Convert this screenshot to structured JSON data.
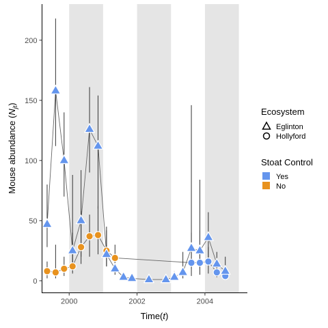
{
  "chart_data": {
    "type": "scatter",
    "xlabel": "Time(",
    "xlabel_var": "t",
    "xlabel_close": ")",
    "ylabel": "Mouse abundance (",
    "ylabel_var": "N",
    "ylabel_sub": "jt",
    "ylabel_close": ")",
    "xlim": [
      1999.2,
      2005.25
    ],
    "ylim": [
      -10,
      230
    ],
    "x_ticks": [
      2000,
      2002,
      2004
    ],
    "y_ticks": [
      0,
      50,
      100,
      150,
      200
    ],
    "x_tick_labels": [
      "2000",
      "2002",
      "2004"
    ],
    "y_tick_labels": [
      "0",
      "50",
      "100",
      "150",
      "200"
    ],
    "grid": false,
    "shaded_periods": [
      [
        2000,
        2001
      ],
      [
        2002,
        2003
      ],
      [
        2004,
        2005
      ]
    ],
    "colors": {
      "yes": "#6495ED",
      "no": "#E8921E",
      "shade": "#E5E5E5",
      "line": "#666666",
      "errorbar": "#333333"
    },
    "legend": {
      "position": "right",
      "ecosystem_title": "Ecosystem",
      "ecosystem_items": [
        {
          "label": "Eglinton",
          "shape": "triangle"
        },
        {
          "label": "Hollyford",
          "shape": "circle"
        }
      ],
      "control_title": "Stoat Control",
      "control_items": [
        {
          "label": "Yes",
          "color": "#6495ED"
        },
        {
          "label": "No",
          "color": "#E8921E"
        }
      ]
    },
    "series": [
      {
        "ecosystem": "Eglinton",
        "shape": "triangle",
        "points": [
          {
            "x": 1999.35,
            "y": 47,
            "lo": 28,
            "hi": 80,
            "control": "Yes"
          },
          {
            "x": 1999.6,
            "y": 158,
            "lo": 112,
            "hi": 218,
            "control": "Yes"
          },
          {
            "x": 1999.85,
            "y": 100,
            "lo": 70,
            "hi": 140,
            "control": "Yes"
          },
          {
            "x": 2000.1,
            "y": 25,
            "lo": 8,
            "hi": 88,
            "control": "Yes"
          },
          {
            "x": 2000.35,
            "y": 50,
            "lo": 20,
            "hi": 92,
            "control": "Yes"
          },
          {
            "x": 2000.6,
            "y": 126,
            "lo": 90,
            "hi": 161,
            "control": "Yes"
          },
          {
            "x": 2000.85,
            "y": 112,
            "lo": 60,
            "hi": 154,
            "control": "Yes"
          },
          {
            "x": 2001.1,
            "y": 22,
            "lo": 12,
            "hi": 45,
            "control": "Yes"
          },
          {
            "x": 2001.35,
            "y": 10,
            "lo": 5,
            "hi": 20,
            "control": "Yes"
          },
          {
            "x": 2001.6,
            "y": 3,
            "lo": 1,
            "hi": 6,
            "control": "Yes"
          },
          {
            "x": 2001.85,
            "y": 2,
            "lo": 1,
            "hi": 4,
            "control": "Yes"
          },
          {
            "x": 2002.35,
            "y": 1,
            "lo": 0,
            "hi": 3,
            "control": "Yes"
          },
          {
            "x": 2002.85,
            "y": 1,
            "lo": 0,
            "hi": 3,
            "control": "Yes"
          },
          {
            "x": 2003.1,
            "y": 3,
            "lo": 1,
            "hi": 8,
            "control": "Yes"
          },
          {
            "x": 2003.35,
            "y": 7,
            "lo": 2,
            "hi": 24,
            "control": "Yes"
          },
          {
            "x": 2003.6,
            "y": 27,
            "lo": 10,
            "hi": 146,
            "control": "Yes"
          },
          {
            "x": 2003.85,
            "y": 25,
            "lo": 10,
            "hi": 84,
            "control": "Yes"
          },
          {
            "x": 2004.1,
            "y": 36,
            "lo": 18,
            "hi": 57,
            "control": "Yes"
          },
          {
            "x": 2004.35,
            "y": 14,
            "lo": 5,
            "hi": 24,
            "control": "Yes"
          },
          {
            "x": 2004.6,
            "y": 8,
            "lo": 2,
            "hi": 20,
            "control": "Yes"
          }
        ]
      },
      {
        "ecosystem": "Hollyford",
        "shape": "circle",
        "points": [
          {
            "x": 1999.35,
            "y": 8,
            "lo": 2,
            "hi": 16,
            "control": "No"
          },
          {
            "x": 1999.6,
            "y": 7,
            "lo": 2,
            "hi": 30,
            "control": "No"
          },
          {
            "x": 1999.85,
            "y": 10,
            "lo": 4,
            "hi": 20,
            "control": "No"
          },
          {
            "x": 2000.1,
            "y": 12,
            "lo": 6,
            "hi": 40,
            "control": "No"
          },
          {
            "x": 2000.35,
            "y": 28,
            "lo": 14,
            "hi": 58,
            "control": "No"
          },
          {
            "x": 2000.6,
            "y": 37,
            "lo": 20,
            "hi": 55,
            "control": "No"
          },
          {
            "x": 2000.85,
            "y": 38,
            "lo": 22,
            "hi": 62,
            "control": "No"
          },
          {
            "x": 2001.1,
            "y": 25,
            "lo": 12,
            "hi": 42,
            "control": "No"
          },
          {
            "x": 2001.35,
            "y": 19,
            "lo": 8,
            "hi": 30,
            "control": "No"
          },
          {
            "x": 2003.6,
            "y": 15,
            "lo": 4,
            "hi": 40,
            "control": "Yes"
          },
          {
            "x": 2003.85,
            "y": 15,
            "lo": 5,
            "hi": 42,
            "control": "Yes"
          },
          {
            "x": 2004.1,
            "y": 16,
            "lo": 6,
            "hi": 28,
            "control": "Yes"
          },
          {
            "x": 2004.35,
            "y": 7,
            "lo": 3,
            "hi": 12,
            "control": "Yes"
          },
          {
            "x": 2004.6,
            "y": 4,
            "lo": 1,
            "hi": 8,
            "control": "Yes"
          }
        ]
      }
    ]
  }
}
